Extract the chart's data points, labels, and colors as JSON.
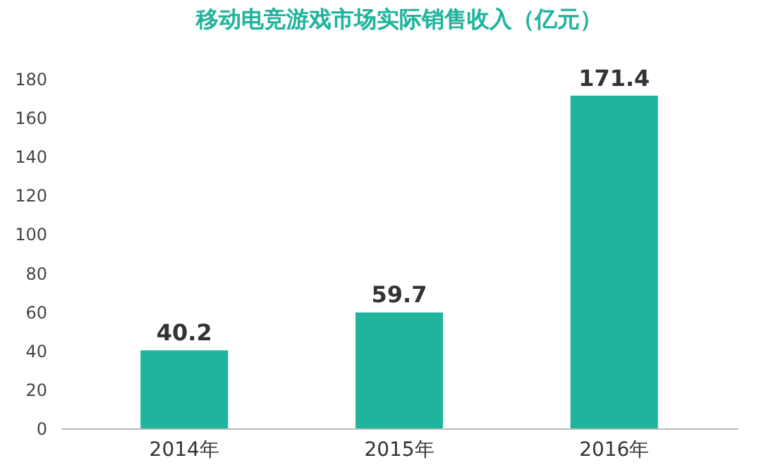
{
  "chart_data": {
    "type": "bar",
    "title": "移动电竞游戏市场实际销售收入（亿元）",
    "categories": [
      "2014年",
      "2015年",
      "2016年"
    ],
    "values": [
      40.2,
      59.7,
      171.4
    ],
    "color": "#20b49c",
    "ylim": [
      0,
      180
    ],
    "yticks": [
      0,
      20,
      40,
      60,
      80,
      100,
      120,
      140,
      160,
      180
    ],
    "grid": false,
    "data_labels": true
  }
}
